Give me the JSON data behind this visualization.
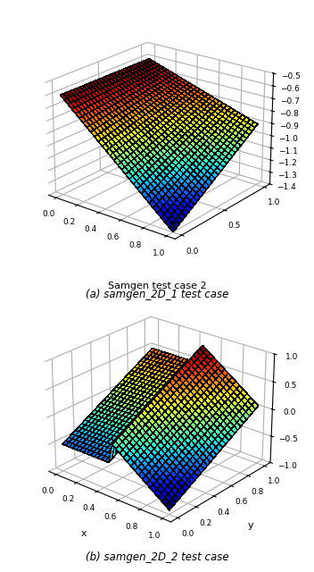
{
  "n_grid": 30,
  "plot1": {
    "caption": "(a) samgen_2D_1 test case",
    "elev": 22,
    "azim": -52,
    "zlim": [
      -1.4,
      -0.5
    ],
    "zticks": [
      -1.4,
      -1.3,
      -1.2,
      -1.1,
      -1.0,
      -0.9,
      -0.8,
      -0.7,
      -0.6,
      -0.5
    ],
    "xticks": [
      0.0,
      0.2,
      0.4,
      0.6,
      0.8,
      1.0
    ],
    "yticks": [
      0.0,
      0.5,
      1.0
    ]
  },
  "plot2": {
    "title": "Samgen test case 2",
    "caption": "(b) samgen_2D_2 test case",
    "elev": 25,
    "azim": -50,
    "zlim": [
      -1.0,
      1.0
    ],
    "zticks": [
      -1.0,
      -0.5,
      0.0,
      0.5,
      1.0
    ],
    "xticks": [
      0.0,
      0.2,
      0.4,
      0.6,
      0.8,
      1.0
    ],
    "yticks": [
      0.0,
      0.2,
      0.4,
      0.6,
      0.8,
      1.0
    ],
    "xlabel": "x",
    "ylabel": "y"
  },
  "cmap": "jet",
  "lw": 0.3,
  "ec": "k"
}
